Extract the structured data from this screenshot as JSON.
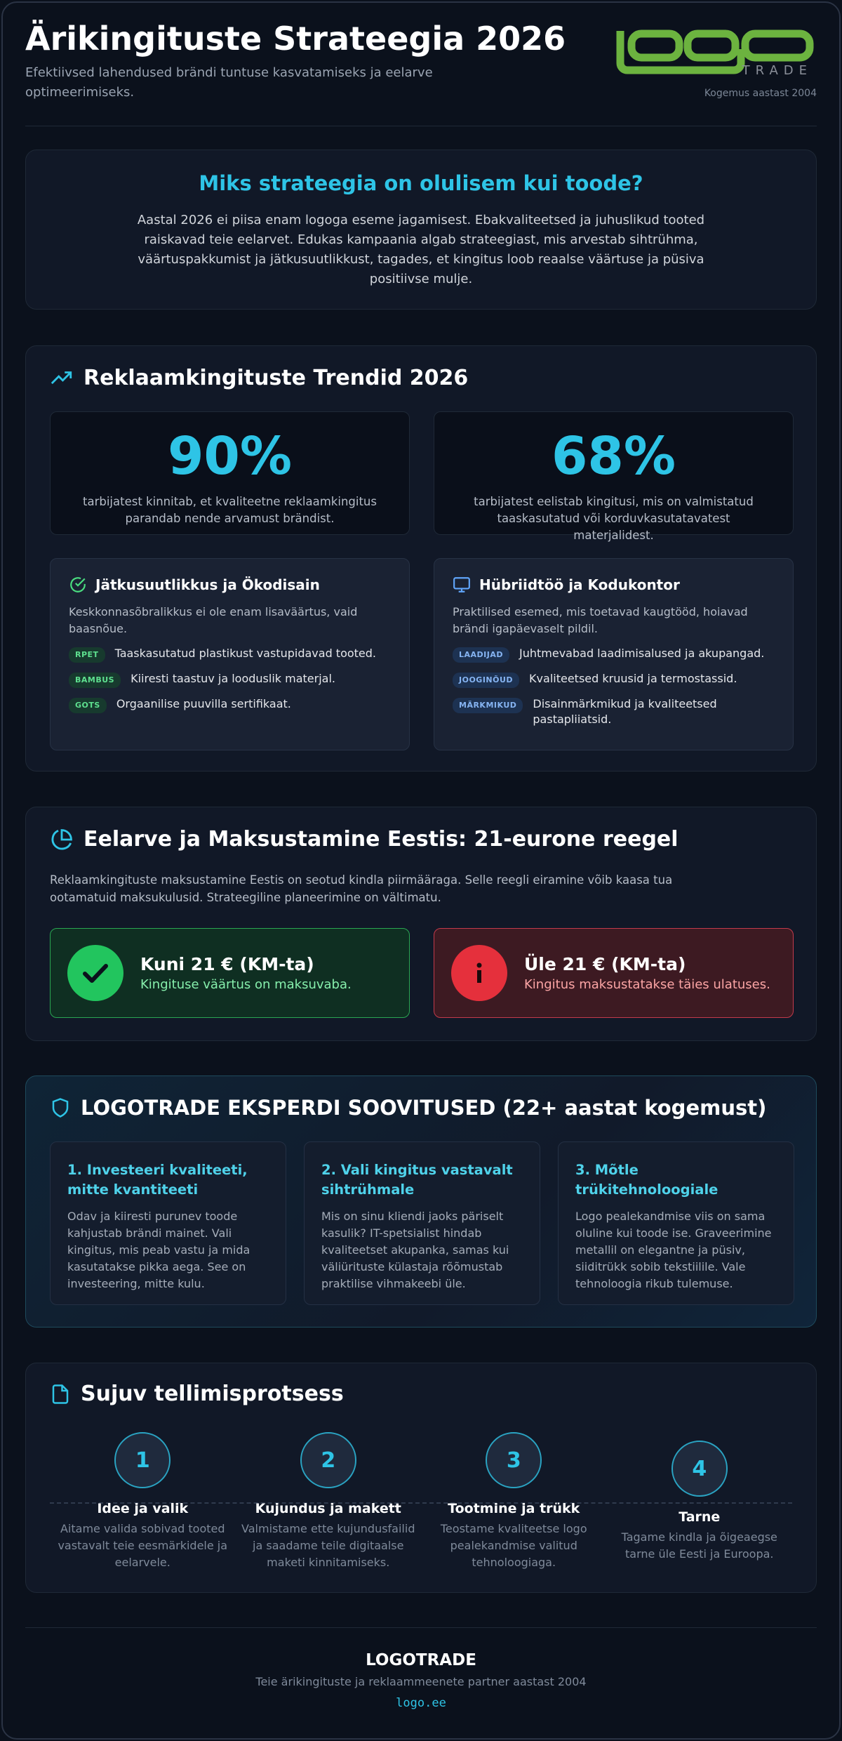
{
  "header": {
    "title": "Ärikingituste Strateegia 2026",
    "subtitle": "Efektiivsed lahendused brändi tuntuse kasvatamiseks ja eelarve optimeerimiseks.",
    "logo_tagline": "TRADE",
    "experience": "Kogemus aastast 2004"
  },
  "intro": {
    "title": "Miks strateegia on olulisem kui toode?",
    "text": "Aastal 2026 ei piisa enam logoga eseme jagamisest. Ebakvaliteetsed ja juhuslikud tooted raiskavad teie eelarvet. Edukas kampaania algab strateegiast, mis arvestab sihtrühma, väärtuspakkumist ja jätkusuutlikkust, tagades, et kingitus loob reaalse väärtuse ja püsiva positiivse mulje."
  },
  "trends": {
    "title": "Reklaamkingituste Trendid 2026",
    "stats": [
      {
        "value": "90%",
        "text": "tarbijatest kinnitab, et kvaliteetne reklaamkingitus parandab nende arvamust brändist."
      },
      {
        "value": "68%",
        "text": "tarbijatest eelistab kingitusi, mis on valmistatud taaskasutatud või korduvkasutatavatest materjalidest."
      }
    ],
    "cards": [
      {
        "title": "Jätkusuutlikkus ja Ökodisain",
        "text": "Keskkonnasõbralikkus ei ole enam lisaväärtus, vaid baasnõue.",
        "items": [
          {
            "tag": "RPET",
            "text": "Taaskasutatud plastikust vastupidavad tooted."
          },
          {
            "tag": "BAMBUS",
            "text": "Kiiresti taastuv ja looduslik materjal."
          },
          {
            "tag": "GOTS",
            "text": "Orgaanilise puuvilla sertifikaat."
          }
        ]
      },
      {
        "title": "Hübriidtöö ja Kodukontor",
        "text": "Praktilised esemed, mis toetavad kaugtööd, hoiavad brändi igapäevaselt pildil.",
        "items": [
          {
            "tag": "LAADIJAD",
            "text": "Juhtmevabad laadimisalused ja akupangad."
          },
          {
            "tag": "JOOGINÕUD",
            "text": "Kvaliteetsed kruusid ja termostassid."
          },
          {
            "tag": "MÄRKMIKUD",
            "text": "Disainmärkmikud ja kvaliteetsed pastapliiatsid."
          }
        ]
      }
    ]
  },
  "budget": {
    "title": "Eelarve ja Maksustamine Eestis: 21-eurone reegel",
    "text": "Reklaamkingituste maksustamine Eestis on seotud kindla piirmääraga. Selle reegli eiramine võib kaasa tua ootamatuid maksukulusid. Strateegiline planeerimine on vältimatu.",
    "boxes": [
      {
        "title": "Kuni 21 € (KM-ta)",
        "text": "Kingituse väärtus on maksuvaba."
      },
      {
        "title": "Üle 21 € (KM-ta)",
        "text": "Kingitus maksustatakse täies ulatuses."
      }
    ]
  },
  "experts": {
    "title": "LOGOTRADE EKSPERDI SOOVITUSED (22+ aastat kogemust)",
    "tips": [
      {
        "title": "1. Investeeri kvaliteeti, mitte kvantiteeti",
        "text": "Odav ja kiiresti purunev toode kahjustab brändi mainet. Vali kingitus, mis peab vastu ja mida kasutatakse pikka aega. See on investeering, mitte kulu."
      },
      {
        "title": "2. Vali kingitus vastavalt sihtrühmale",
        "text": "Mis on sinu kliendi jaoks päriselt kasulik? IT-spetsialist hindab kvaliteetset akupanka, samas kui väliürituste külastaja rõõmustab praktilise vihmakeebi üle."
      },
      {
        "title": "3. Mõtle trükitehnoloogiale",
        "text": "Logo pealekandmise viis on sama oluline kui toode ise. Graveerimine metallil on elegantne ja püsiv, siiditrükk sobib tekstiilile. Vale tehnoloogia rikub tulemuse."
      }
    ]
  },
  "process": {
    "title": "Sujuv tellimisprotsess",
    "steps": [
      {
        "number": "1",
        "title": "Idee ja valik",
        "text": "Aitame valida sobivad tooted vastavalt teie eesmärkidele ja eelarvele."
      },
      {
        "number": "2",
        "title": "Kujundus ja makett",
        "text": "Valmistame ette kujundusfailid ja saadame teile digitaalse maketi kinnitamiseks."
      },
      {
        "number": "3",
        "title": "Tootmine ja trükk",
        "text": "Teostame kvaliteetse logo pealekandmise valitud tehnoloogiaga."
      },
      {
        "number": "4",
        "title": "Tarne",
        "text": "Tagame kindla ja õigeaegse tarne üle Eesti ja Euroopa."
      }
    ]
  },
  "footer": {
    "brand": "LOGOTRADE",
    "tagline": "Teie ärikingituste ja reklaammeenete partner aastast 2004",
    "url": "logo.ee"
  }
}
